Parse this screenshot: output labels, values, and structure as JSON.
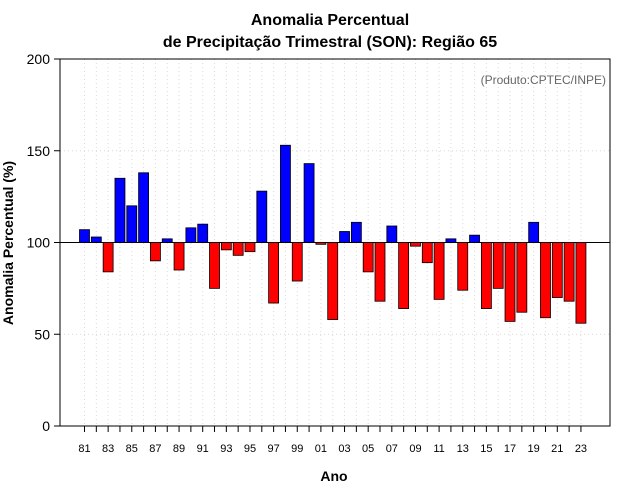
{
  "chart_data": {
    "type": "bar",
    "title_line1": "Anomalia Percentual",
    "title_line2": "de Precipitação Trimestral (SON): Região 65",
    "annotation": "(Produto:CPTEC/INPE)",
    "xlabel": "Ano",
    "ylabel": "Anomalia Percentual (%)",
    "ylim": [
      0,
      200
    ],
    "yticks": [
      0,
      50,
      100,
      150,
      200
    ],
    "baseline": 100,
    "grid": true,
    "colors": {
      "above": "#0000ff",
      "below": "#ff0000",
      "outline": "#000000",
      "grid": "#d9d9d9"
    },
    "categories": [
      "81",
      "82",
      "83",
      "84",
      "85",
      "86",
      "87",
      "88",
      "89",
      "90",
      "91",
      "92",
      "93",
      "94",
      "95",
      "96",
      "97",
      "98",
      "99",
      "00",
      "01",
      "02",
      "03",
      "04",
      "05",
      "06",
      "07",
      "08",
      "09",
      "10",
      "11",
      "12",
      "13",
      "14",
      "15",
      "16",
      "17",
      "18",
      "19",
      "20",
      "21",
      "22",
      "23"
    ],
    "xtick_labels": [
      "81",
      "83",
      "85",
      "87",
      "89",
      "91",
      "93",
      "95",
      "97",
      "99",
      "01",
      "03",
      "05",
      "07",
      "09",
      "11",
      "13",
      "15",
      "17",
      "19",
      "21",
      "23"
    ],
    "values": [
      107,
      103,
      84,
      135,
      120,
      138,
      90,
      102,
      85,
      108,
      110,
      75,
      96,
      93,
      95,
      128,
      67,
      153,
      79,
      143,
      99,
      58,
      106,
      111,
      84,
      68,
      109,
      64,
      98,
      89,
      69,
      102,
      74,
      104,
      64,
      75,
      57,
      62,
      111,
      59,
      70,
      68,
      56
    ]
  }
}
